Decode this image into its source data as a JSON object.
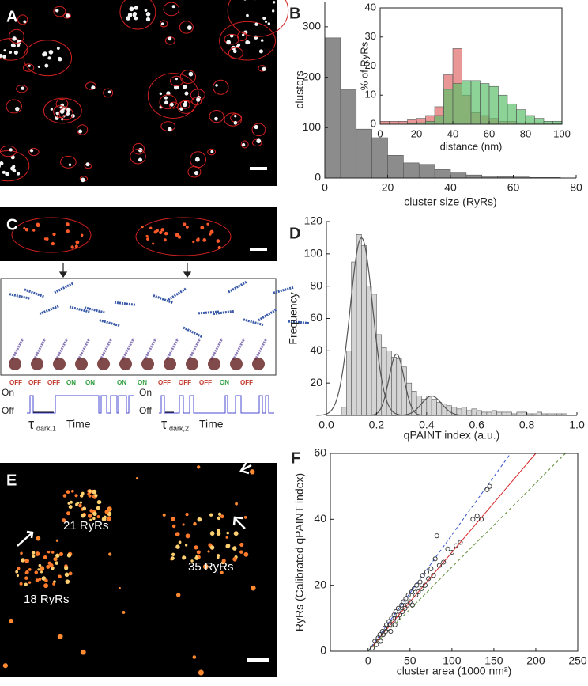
{
  "panels": [
    "A",
    "B",
    "C",
    "D",
    "E",
    "F"
  ],
  "panel_c": {
    "states": [
      {
        "text": "OFF",
        "color": "#c0392b"
      },
      {
        "text": "OFF",
        "color": "#c0392b"
      },
      {
        "text": "OFF",
        "color": "#c0392b"
      },
      {
        "text": "ON",
        "color": "#2e9e3e"
      },
      {
        "text": "ON",
        "color": "#2e9e3e"
      },
      {
        "text": "ON",
        "color": "#2e9e3e"
      },
      {
        "text": "ON",
        "color": "#2e9e3e"
      },
      {
        "text": "OFF",
        "color": "#c0392b"
      },
      {
        "text": "OFF",
        "color": "#c0392b"
      },
      {
        "text": "OFF",
        "color": "#c0392b"
      },
      {
        "text": "ON",
        "color": "#2e9e3e"
      },
      {
        "text": "OFF",
        "color": "#c0392b"
      }
    ],
    "trace_labels": [
      "On",
      "Off"
    ],
    "dark_times": [
      {
        "symbol": "τ",
        "subscript": "dark,1",
        "label": "Time"
      },
      {
        "symbol": "τ",
        "subscript": "dark,2",
        "label": "Time"
      }
    ]
  },
  "panel_e": {
    "labels": [
      "21 RyRs",
      "35 RyRs",
      "18 RyRs"
    ]
  },
  "chart_data": [
    {
      "type": "histogram",
      "xlabel": "cluster size (RyRs)",
      "ylabel": "clusters",
      "bins": [
        0,
        5,
        10,
        15,
        20,
        25,
        30,
        35,
        40,
        45,
        50,
        55,
        60,
        65,
        70,
        75
      ],
      "values": [
        278,
        175,
        97,
        80,
        45,
        30,
        27,
        17,
        10,
        6,
        4,
        3,
        2,
        1,
        1
      ],
      "color": "#8c8c8c",
      "xlim": [
        0,
        80
      ],
      "ylim": [
        0,
        350
      ],
      "xticks": [
        0,
        20,
        40,
        60,
        80
      ],
      "yticks": [
        0,
        100,
        200,
        300
      ]
    },
    {
      "type": "histogram",
      "xlabel": "distance (nm)",
      "ylabel": "% of RyRs",
      "bins": [
        0,
        5,
        10,
        15,
        20,
        25,
        30,
        35,
        40,
        45,
        50,
        55,
        60,
        65,
        70,
        75,
        80,
        85,
        90,
        95,
        100
      ],
      "series": [
        {
          "color": "#e06a6a",
          "values": [
            1,
            1,
            1,
            1.5,
            2,
            3,
            6,
            17,
            26,
            10,
            4,
            3,
            2,
            1,
            1,
            0.5,
            0.5,
            0.5,
            0.3,
            0.2
          ]
        },
        {
          "color": "#5cbf6a",
          "values": [
            0,
            0,
            0,
            0.3,
            0.5,
            1,
            3,
            12,
            14,
            15,
            15,
            14,
            13,
            10,
            7,
            5,
            3,
            2,
            1,
            1
          ]
        }
      ],
      "xlim": [
        0,
        100
      ],
      "ylim": [
        0,
        40
      ],
      "xticks": [
        0,
        20,
        40,
        60,
        80,
        100
      ],
      "yticks": [
        0,
        10,
        20,
        30,
        40
      ]
    },
    {
      "type": "histogram",
      "xlabel": "qPAINT index (a.u.)",
      "ylabel": "Frequency",
      "bins": [
        0.06,
        0.08,
        0.1,
        0.12,
        0.14,
        0.16,
        0.18,
        0.2,
        0.22,
        0.24,
        0.26,
        0.28,
        0.3,
        0.32,
        0.34,
        0.36,
        0.38,
        0.4,
        0.42,
        0.44,
        0.46,
        0.48,
        0.5,
        0.52,
        0.54,
        0.56,
        0.58,
        0.6,
        0.62,
        0.64,
        0.66,
        0.68,
        0.7,
        0.72,
        0.74,
        0.76,
        0.78,
        0.8,
        0.82,
        0.84,
        0.86,
        0.88,
        0.9,
        0.92,
        0.94,
        0.96
      ],
      "values": [
        5,
        40,
        95,
        112,
        105,
        80,
        75,
        50,
        42,
        40,
        36,
        35,
        30,
        20,
        15,
        12,
        10,
        12,
        10,
        8,
        7,
        6,
        5,
        4,
        5,
        3,
        4,
        3,
        2,
        2,
        3,
        2,
        2,
        2,
        1,
        2,
        2,
        1,
        1,
        2,
        1,
        1,
        1,
        1,
        1
      ],
      "color": "#d4d4d4",
      "fits": [
        {
          "amplitude": 110,
          "mean": 0.14,
          "sd": 0.045
        },
        {
          "amplitude": 38,
          "mean": 0.28,
          "sd": 0.03
        },
        {
          "amplitude": 12,
          "mean": 0.42,
          "sd": 0.04
        }
      ],
      "xlim": [
        0,
        1
      ],
      "ylim": [
        0,
        120
      ],
      "xticks": [
        {
          "value": 0,
          "label": "0.0"
        },
        0.2,
        0.4,
        0.6,
        0.8,
        {
          "value": 1,
          "label": "1.0"
        }
      ],
      "yticks": [
        20,
        40,
        60,
        80,
        100,
        120
      ]
    },
    {
      "type": "scatter",
      "xlabel": "cluster area (1000 nm²)",
      "ylabel": "RyRs (Calibrated qPAINT index)",
      "x": [
        5,
        8,
        10,
        12,
        14,
        15,
        17,
        18,
        20,
        21,
        22,
        24,
        25,
        26,
        27,
        28,
        30,
        31,
        32,
        33,
        35,
        36,
        38,
        40,
        41,
        42,
        44,
        45,
        47,
        48,
        50,
        52,
        53,
        55,
        57,
        58,
        60,
        62,
        64,
        65,
        68,
        70,
        72,
        75,
        78,
        80,
        82,
        85,
        90,
        95,
        100,
        105,
        110,
        125,
        130,
        135,
        142,
        145
      ],
      "y": [
        1,
        3,
        2,
        4,
        5,
        3,
        6,
        5,
        7,
        6,
        8,
        7,
        9,
        8,
        6,
        10,
        9,
        11,
        8,
        12,
        10,
        13,
        11,
        14,
        12,
        15,
        13,
        16,
        14,
        17,
        15,
        18,
        14,
        19,
        17,
        20,
        18,
        21,
        19,
        23,
        20,
        24,
        22,
        25,
        23,
        28,
        35,
        26,
        27,
        31,
        30,
        32,
        33,
        40,
        41,
        40,
        49,
        50
      ],
      "color": "#333333",
      "lines": [
        {
          "slope": 0.3,
          "color": "#d62728",
          "dash": false
        },
        {
          "slope": 0.353,
          "color": "#3050c8",
          "dash": true
        },
        {
          "slope": 0.255,
          "color": "#5a8a2a",
          "dash": true
        }
      ],
      "xlim": [
        -45,
        250
      ],
      "ylim": [
        0,
        60
      ],
      "xticks": [
        0,
        50,
        100,
        150,
        200,
        250
      ],
      "yticks": [
        0,
        20,
        40,
        60
      ]
    }
  ]
}
